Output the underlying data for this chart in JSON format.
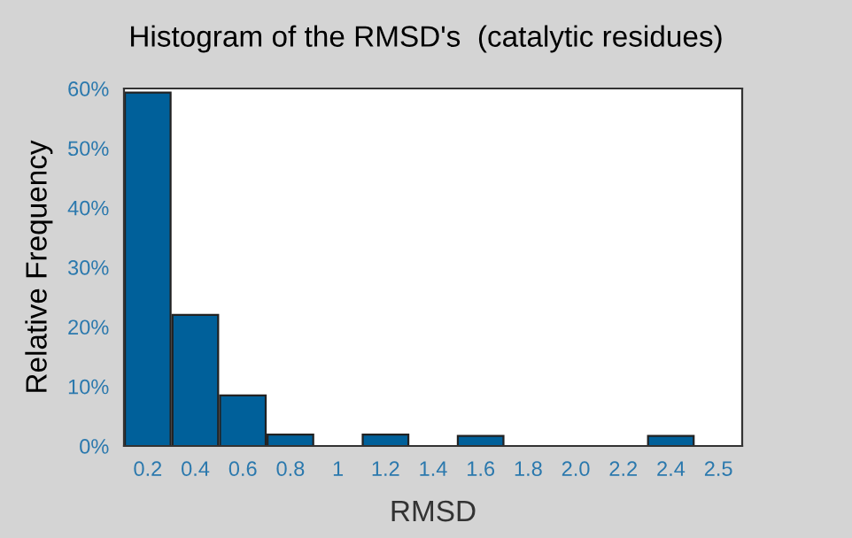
{
  "chart_data": {
    "type": "bar",
    "title": "Histogram of the RMSD's  (catalytic residues)",
    "xlabel": "RMSD",
    "ylabel": "Relative Frequency",
    "categories": [
      "0.2",
      "0.4",
      "0.6",
      "0.8",
      "1",
      "1.2",
      "1.4",
      "1.6",
      "1.8",
      "2.0",
      "2.2",
      "2.4",
      "2.5"
    ],
    "values": [
      59.3,
      22.0,
      8.5,
      1.9,
      0,
      1.9,
      0,
      1.7,
      0,
      0,
      0,
      1.7,
      0
    ],
    "color": "#00609a",
    "ylim": [
      0,
      60
    ],
    "yticks": [
      {
        "value": 0,
        "label": "0%"
      },
      {
        "value": 10,
        "label": "10%"
      },
      {
        "value": 20,
        "label": "20%"
      },
      {
        "value": 30,
        "label": "30%"
      },
      {
        "value": 40,
        "label": "40%"
      },
      {
        "value": 50,
        "label": "50%"
      },
      {
        "value": 60,
        "label": "60%"
      }
    ],
    "grid": false,
    "legend": false
  }
}
